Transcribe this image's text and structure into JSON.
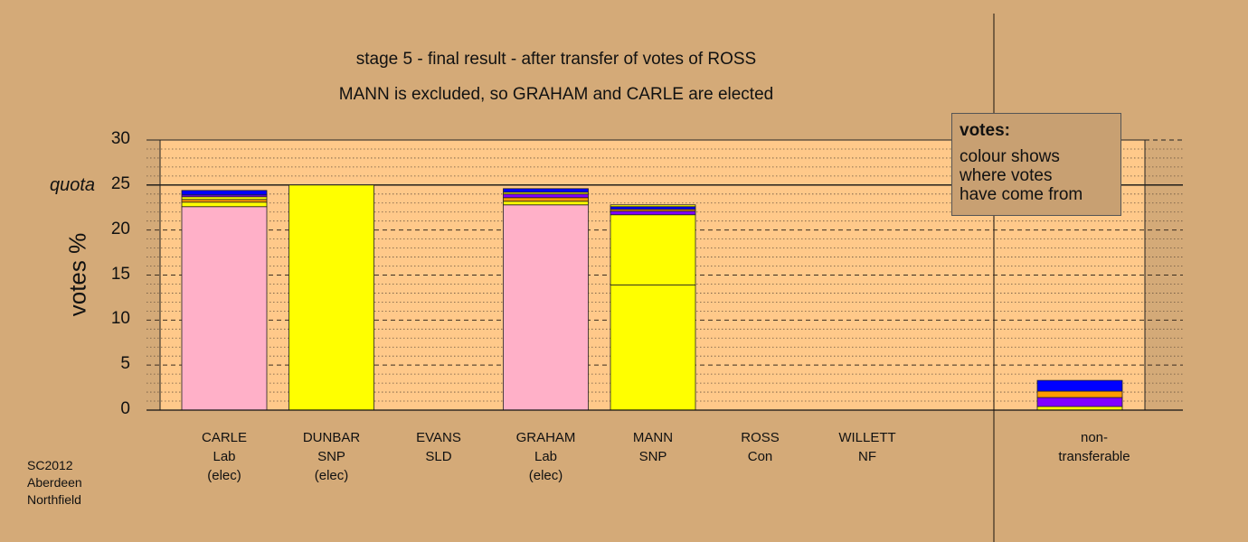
{
  "title_line1": "stage 5 - final result - after transfer of votes of ROSS",
  "title_line2": "MANN is excluded, so GRAHAM and CARLE are elected",
  "legend": {
    "title": "votes:",
    "line1": "colour shows",
    "line2": "where votes",
    "line3": "have come from"
  },
  "source": {
    "line1": "SC2012",
    "line2": "Aberdeen",
    "line3": "Northfield"
  },
  "chart_data": {
    "type": "bar",
    "stacked": true,
    "ylabel": "votes %",
    "ylim": [
      0,
      30
    ],
    "yticks": [
      0,
      5,
      10,
      15,
      20,
      25,
      30
    ],
    "quota": 25,
    "quota_label": "quota",
    "grid": true,
    "candidates": [
      {
        "name": "CARLE",
        "party": "Lab",
        "status": "(elec)",
        "segments": [
          {
            "color": "#ffb0c8",
            "value": 22.6
          },
          {
            "color": "#ffff00",
            "value": 0.5
          },
          {
            "color": "#ff9a00",
            "value": 0.3
          },
          {
            "color": "#ffff00",
            "value": 0.3
          },
          {
            "color": "#8000ff",
            "value": 0.2
          },
          {
            "color": "#0000ff",
            "value": 0.5
          }
        ]
      },
      {
        "name": "DUNBAR",
        "party": "SNP",
        "status": "(elec)",
        "segments": [
          {
            "color": "#ffff00",
            "value": 25.0
          }
        ]
      },
      {
        "name": "EVANS",
        "party": "SLD",
        "status": "",
        "segments": []
      },
      {
        "name": "GRAHAM",
        "party": "Lab",
        "status": "(elec)",
        "segments": [
          {
            "color": "#ffb0c8",
            "value": 22.8
          },
          {
            "color": "#ffff00",
            "value": 0.4
          },
          {
            "color": "#ff9a00",
            "value": 0.4
          },
          {
            "color": "#8000ff",
            "value": 0.4
          },
          {
            "color": "#ffff00",
            "value": 0.2
          },
          {
            "color": "#0000ff",
            "value": 0.4
          }
        ]
      },
      {
        "name": "MANN",
        "party": "SNP",
        "status": "",
        "segments": [
          {
            "color": "#ffff00",
            "value": 13.9
          },
          {
            "color": "#ffff00",
            "value": 7.8
          },
          {
            "color": "#8000ff",
            "value": 0.4
          },
          {
            "color": "#ff9a00",
            "value": 0.2
          },
          {
            "color": "#0000ff",
            "value": 0.3
          },
          {
            "color": "#ffff00",
            "value": 0.2
          }
        ]
      },
      {
        "name": "ROSS",
        "party": "Con",
        "status": "",
        "segments": []
      },
      {
        "name": "WILLETT",
        "party": "NF",
        "status": "",
        "segments": []
      }
    ],
    "nontransferable": {
      "line1": "non-",
      "line2": "transferable",
      "segments": [
        {
          "color": "#ffff00",
          "value": 0.4
        },
        {
          "color": "#8000ff",
          "value": 1.0
        },
        {
          "color": "#ff9a00",
          "value": 0.7
        },
        {
          "color": "#0000ff",
          "value": 1.2
        }
      ]
    }
  }
}
